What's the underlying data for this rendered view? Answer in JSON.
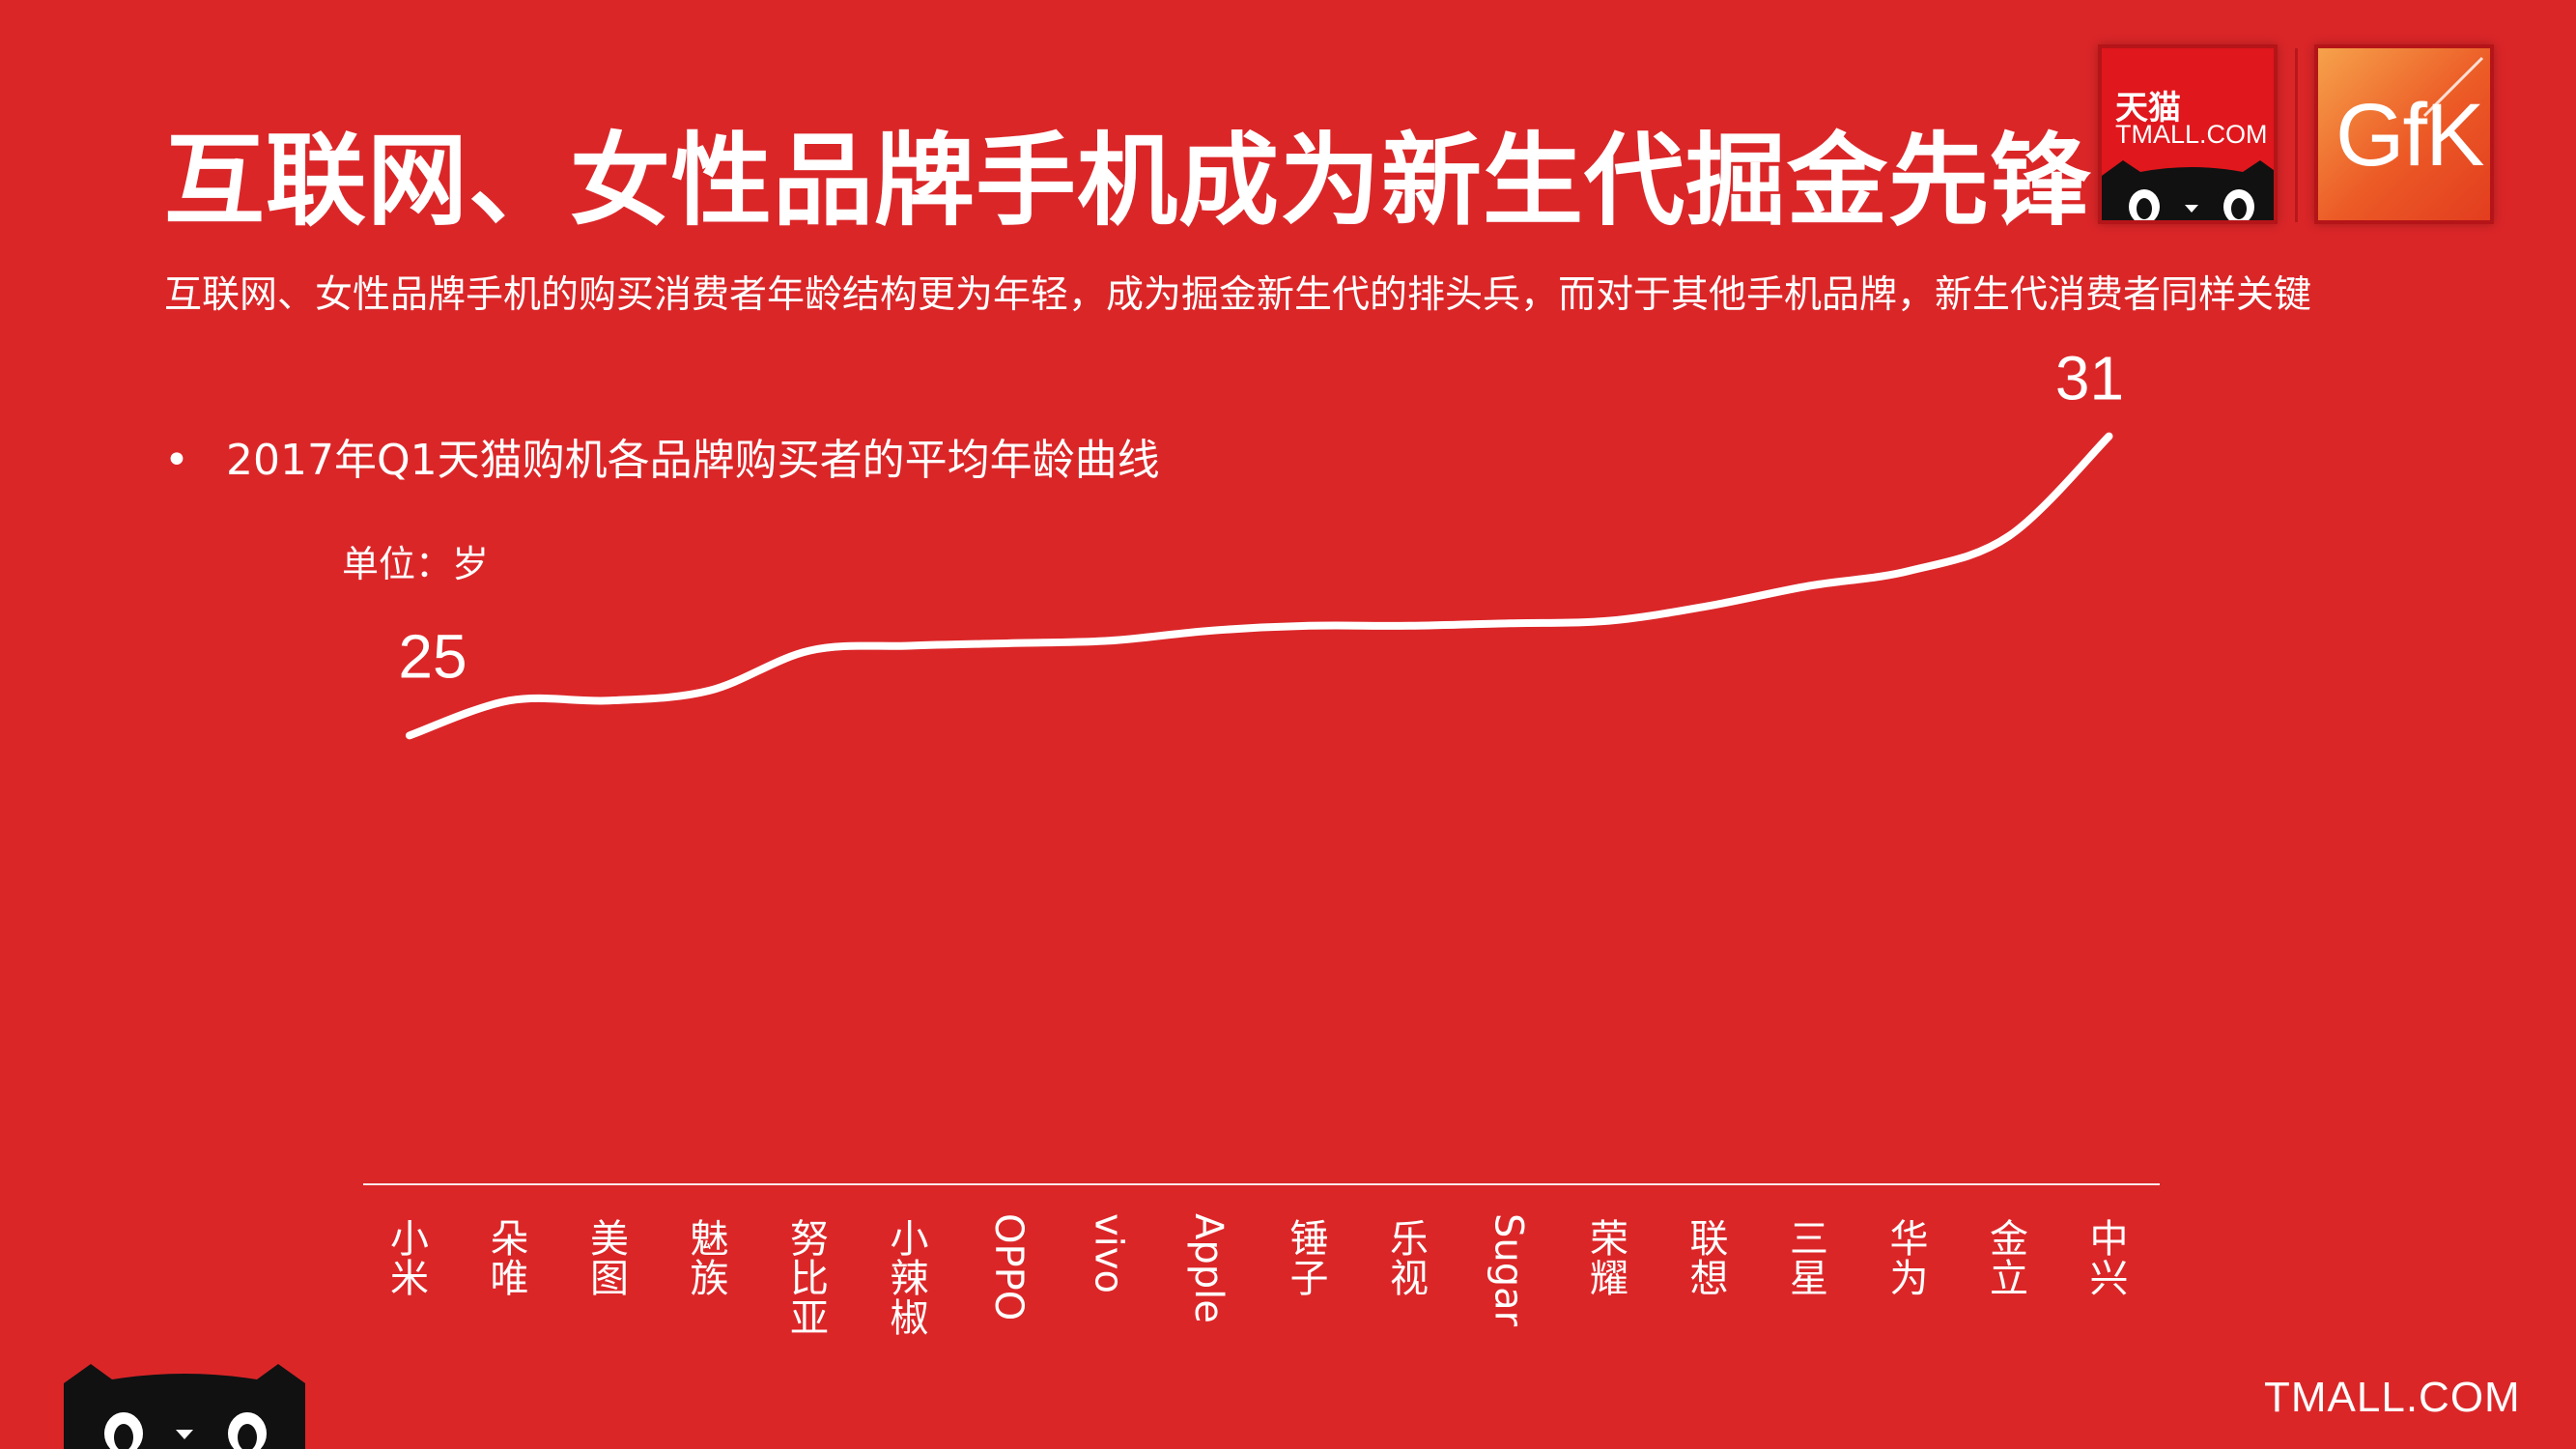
{
  "header": {
    "title": "互联网、女性品牌手机成为新生代掘金先锋",
    "subtitle": "互联网、女性品牌手机的购买消费者年龄结构更为年轻，成为掘金新生代的排头兵，而对于其他手机品牌，新生代消费者同样关键",
    "bullet": "•",
    "bullet_text": "2017年Q1天猫购机各品牌购买者的平均年龄曲线",
    "unit": "单位：岁"
  },
  "logos": {
    "tmall_cn": "天猫",
    "tmall_en": "TMALL.COM",
    "gfk": "GfK",
    "footer": "TMALL.COM"
  },
  "colors": {
    "background": "#db2628",
    "line": "#ffffff"
  },
  "chart_data": {
    "type": "line",
    "categories": [
      "小米",
      "朵唯",
      "美图",
      "魅族",
      "努比亚",
      "小辣椒",
      "OPPO",
      "vivo",
      "Apple",
      "锤子",
      "乐视",
      "Sugar",
      "荣耀",
      "联想",
      "三星",
      "华为",
      "金立",
      "中兴"
    ],
    "values": [
      25.0,
      25.7,
      25.7,
      25.9,
      26.7,
      26.8,
      26.85,
      26.9,
      27.1,
      27.2,
      27.2,
      27.25,
      27.3,
      27.6,
      28.0,
      28.3,
      29.0,
      31.0
    ],
    "point_labels": [
      "25",
      "",
      "",
      "",
      "",
      "",
      "",
      "",
      "",
      "",
      "",
      "",
      "",
      "",
      "",
      "",
      "",
      "31"
    ],
    "ylim": [
      16,
      32
    ],
    "grid": false,
    "legend": "none"
  }
}
